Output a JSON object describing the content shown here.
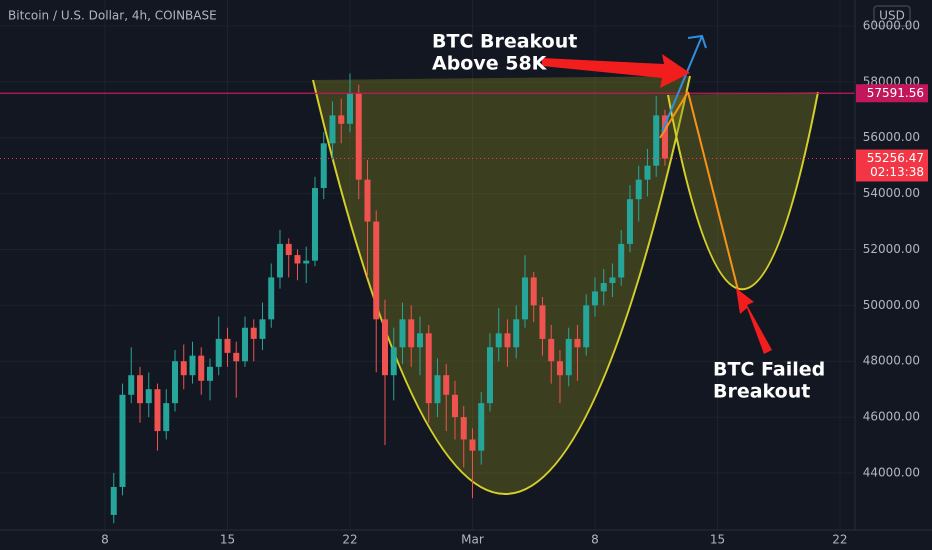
{
  "chart_data": {
    "type": "candlestick",
    "title": "Bitcoin / U.S. Dollar, 4h, COINBASE",
    "currency": "USD",
    "x": [
      0.5,
      1,
      1.5,
      2,
      2.5,
      3,
      3.5,
      4,
      4.5,
      5,
      5.5,
      6,
      6.5,
      7,
      7.5,
      8,
      8.5,
      9,
      9.5,
      10,
      10.5,
      11,
      11.5,
      12,
      12.5,
      13,
      13.5,
      14,
      14.5,
      15,
      15.5,
      16,
      16.5,
      17,
      17.5,
      18,
      18.5,
      19,
      19.5,
      20,
      20.5,
      21,
      21.5,
      22,
      22.5,
      23,
      23.5,
      24,
      24.5,
      25,
      25.5,
      26,
      26.5,
      27,
      27.5,
      28,
      28.5,
      29,
      29.5,
      30,
      30.5,
      31,
      31.5,
      32
    ],
    "open": [
      42500,
      43500,
      46800,
      47500,
      46500,
      47000,
      45500,
      46500,
      48000,
      47500,
      48200,
      47300,
      47800,
      48800,
      48300,
      48000,
      49200,
      48800,
      49500,
      51000,
      52200,
      51800,
      51500,
      51600,
      54200,
      55800,
      56800,
      56500,
      57600,
      54500,
      53000,
      49500,
      47500,
      48500,
      49500,
      48500,
      49000,
      46500,
      47500,
      46800,
      46000,
      45200,
      44800,
      46500,
      48500,
      49000,
      48500,
      49500,
      51000,
      50000,
      48800,
      48000,
      47500,
      48800,
      48500,
      50000,
      50500,
      50800,
      51000,
      52200,
      53800,
      54500,
      55000,
      56800
    ],
    "high": [
      44000,
      47200,
      48500,
      47800,
      47600,
      47200,
      47000,
      48400,
      48600,
      48700,
      48500,
      48100,
      49600,
      49200,
      48700,
      49600,
      49500,
      50100,
      51500,
      52700,
      52400,
      52000,
      52100,
      54600,
      56200,
      57300,
      57400,
      58300,
      57900,
      55200,
      53400,
      50200,
      49200,
      50100,
      50000,
      49600,
      49300,
      48100,
      47900,
      47300,
      46400,
      45600,
      46900,
      49000,
      49900,
      49500,
      50000,
      51800,
      51200,
      50300,
      49300,
      48400,
      49200,
      49300,
      50400,
      51000,
      51300,
      51500,
      52700,
      54300,
      55000,
      55600,
      57500,
      57000
    ],
    "low": [
      42200,
      43200,
      46500,
      45800,
      46000,
      44800,
      45200,
      46200,
      47000,
      47200,
      46800,
      46600,
      47500,
      47800,
      46700,
      47800,
      48000,
      48400,
      49200,
      50600,
      51000,
      50900,
      50800,
      51400,
      53800,
      55200,
      55800,
      56200,
      53800,
      51000,
      47600,
      45000,
      46600,
      47900,
      47800,
      47500,
      45800,
      46000,
      45500,
      45200,
      44200,
      43100,
      44300,
      46200,
      48000,
      47800,
      48100,
      49200,
      49400,
      48200,
      47200,
      46500,
      47100,
      47300,
      48200,
      49600,
      50000,
      50300,
      50700,
      51900,
      53000,
      53900,
      54600,
      55000
    ],
    "close": [
      43500,
      46800,
      47500,
      46500,
      47000,
      45500,
      46500,
      48000,
      47500,
      48200,
      47300,
      47800,
      48800,
      48300,
      48000,
      49200,
      48800,
      49500,
      51000,
      52200,
      51800,
      51500,
      51600,
      54200,
      55800,
      56800,
      56500,
      57600,
      54500,
      53000,
      49500,
      47500,
      48500,
      49500,
      48500,
      49000,
      46500,
      47500,
      46800,
      46000,
      45200,
      44800,
      46500,
      48500,
      49000,
      48500,
      49500,
      51000,
      50000,
      48800,
      48000,
      47500,
      48800,
      48500,
      50000,
      50500,
      50800,
      51000,
      52200,
      53800,
      54500,
      55000,
      56800,
      55256.47
    ],
    "up_color": "#26a69a",
    "down_color": "#ef5350",
    "xlim": [
      -6,
      42.86
    ],
    "xticks": [
      {
        "value": 0,
        "label": "8"
      },
      {
        "value": 7,
        "label": "15"
      },
      {
        "value": 14,
        "label": "22"
      },
      {
        "value": 21,
        "label": "Mar"
      },
      {
        "value": 28,
        "label": "8"
      },
      {
        "value": 35,
        "label": "15"
      },
      {
        "value": 42,
        "label": "22"
      }
    ],
    "ylim": [
      41960,
      60930
    ],
    "yticks": [
      {
        "value": 44000,
        "label": "44000.00"
      },
      {
        "value": 46000,
        "label": "46000.00"
      },
      {
        "value": 48000,
        "label": "48000.00"
      },
      {
        "value": 50000,
        "label": "50000.00"
      },
      {
        "value": 52000,
        "label": "52000.00"
      },
      {
        "value": 54000,
        "label": "54000.00"
      },
      {
        "value": 56000,
        "label": "56000.00"
      },
      {
        "value": 58000,
        "label": "58000.00"
      },
      {
        "value": 60000,
        "label": "60000.00"
      }
    ],
    "grid": true,
    "price_line": {
      "value": 57591.56,
      "color": "#c2185b"
    },
    "last_price_color": "#f23645",
    "countdown": "02:13:38",
    "annotations": [
      "BTC Breakout",
      "Above 58K",
      "BTC Failed",
      "Breakout"
    ]
  }
}
